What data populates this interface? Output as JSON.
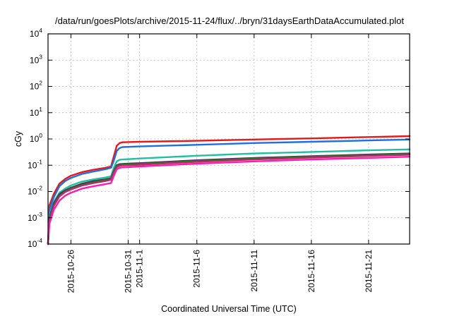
{
  "chart_data": {
    "type": "line",
    "title": "/data/run/goesPlots/archive/2015-11-24/flux/../bryn/31daysEarthDataAccumulated.plot",
    "xlabel": "Coordinated Universal Time (UTC)",
    "ylabel": "cGy",
    "y_scale": "log",
    "ylim": [
      0.0001,
      10000
    ],
    "xlim": [
      "2015-10-24T00:00",
      "2015-11-24T14:00"
    ],
    "grid": true,
    "y_ticks": [
      {
        "value": 0.0001,
        "base": "10",
        "exp": "-4"
      },
      {
        "value": 0.001,
        "base": "10",
        "exp": "-3"
      },
      {
        "value": 0.01,
        "base": "10",
        "exp": "-2"
      },
      {
        "value": 0.1,
        "base": "10",
        "exp": "-1"
      },
      {
        "value": 1,
        "base": "10",
        "exp": "0"
      },
      {
        "value": 10,
        "base": "10",
        "exp": "1"
      },
      {
        "value": 100,
        "base": "10",
        "exp": "2"
      },
      {
        "value": 1000,
        "base": "10",
        "exp": "3"
      },
      {
        "value": 10000,
        "base": "10",
        "exp": "4"
      }
    ],
    "x_ticks": [
      {
        "date": "2015-10-26T00:00",
        "label": "2015-10-26"
      },
      {
        "date": "2015-10-31T00:00",
        "label": "2015-10-31"
      },
      {
        "date": "2015-11-01T00:00",
        "label": "2015-11-1"
      },
      {
        "date": "2015-11-06T00:00",
        "label": "2015-11-6"
      },
      {
        "date": "2015-11-11T00:00",
        "label": "2015-11-11"
      },
      {
        "date": "2015-11-16T00:00",
        "label": "2015-11-16"
      },
      {
        "date": "2015-11-21T00:00",
        "label": "2015-11-21"
      }
    ],
    "x": [
      "2015-10-24T00:00",
      "2015-10-24T03:00",
      "2015-10-24T12:00",
      "2015-10-25T00:00",
      "2015-10-25T12:00",
      "2015-10-26T00:00",
      "2015-10-27T00:00",
      "2015-10-28T00:00",
      "2015-10-29T00:00",
      "2015-10-29T12:00",
      "2015-10-29T18:00",
      "2015-10-30T00:00",
      "2015-10-30T06:00",
      "2015-10-30T12:00",
      "2015-10-31T00:00",
      "2015-11-01T00:00",
      "2015-11-06T00:00",
      "2015-11-11T00:00",
      "2015-11-16T00:00",
      "2015-11-21T00:00",
      "2015-11-24T14:00"
    ],
    "series": [
      {
        "color": "#e31a1c",
        "values": [
          0.0001,
          0.003,
          0.008,
          0.02,
          0.03,
          0.04,
          0.055,
          0.068,
          0.08,
          0.09,
          0.22,
          0.55,
          0.7,
          0.75,
          0.76,
          0.78,
          0.85,
          0.95,
          1.05,
          1.18,
          1.28
        ]
      },
      {
        "color": "#1f6fe0",
        "values": [
          0.0001,
          0.002,
          0.006,
          0.016,
          0.025,
          0.033,
          0.047,
          0.058,
          0.07,
          0.08,
          0.15,
          0.35,
          0.45,
          0.49,
          0.5,
          0.52,
          0.6,
          0.7,
          0.78,
          0.88,
          0.95
        ]
      },
      {
        "color": "#1fbf9f",
        "values": [
          0.0001,
          0.0012,
          0.004,
          0.009,
          0.013,
          0.017,
          0.024,
          0.029,
          0.034,
          0.038,
          0.08,
          0.14,
          0.16,
          0.165,
          0.17,
          0.18,
          0.23,
          0.28,
          0.32,
          0.37,
          0.4
        ]
      },
      {
        "color": "#4a2b5e",
        "values": [
          0.0001,
          0.001,
          0.0035,
          0.008,
          0.011,
          0.014,
          0.02,
          0.025,
          0.029,
          0.032,
          0.06,
          0.1,
          0.11,
          0.112,
          0.115,
          0.12,
          0.155,
          0.19,
          0.22,
          0.255,
          0.28
        ]
      },
      {
        "color": "#2f6f2f",
        "values": [
          0.0001,
          0.0009,
          0.003,
          0.007,
          0.01,
          0.013,
          0.018,
          0.023,
          0.027,
          0.03,
          0.055,
          0.093,
          0.102,
          0.105,
          0.108,
          0.113,
          0.145,
          0.18,
          0.21,
          0.24,
          0.265
        ]
      },
      {
        "color": "#b03060",
        "values": [
          0.0001,
          0.0008,
          0.0028,
          0.0065,
          0.0095,
          0.012,
          0.017,
          0.021,
          0.025,
          0.028,
          0.05,
          0.085,
          0.095,
          0.098,
          0.1,
          0.105,
          0.135,
          0.165,
          0.195,
          0.225,
          0.25
        ]
      },
      {
        "color": "#ff1ab3",
        "values": [
          0.0001,
          0.0006,
          0.002,
          0.0045,
          0.007,
          0.009,
          0.013,
          0.016,
          0.019,
          0.021,
          0.04,
          0.07,
          0.08,
          0.083,
          0.085,
          0.09,
          0.115,
          0.14,
          0.165,
          0.19,
          0.21
        ]
      }
    ]
  }
}
